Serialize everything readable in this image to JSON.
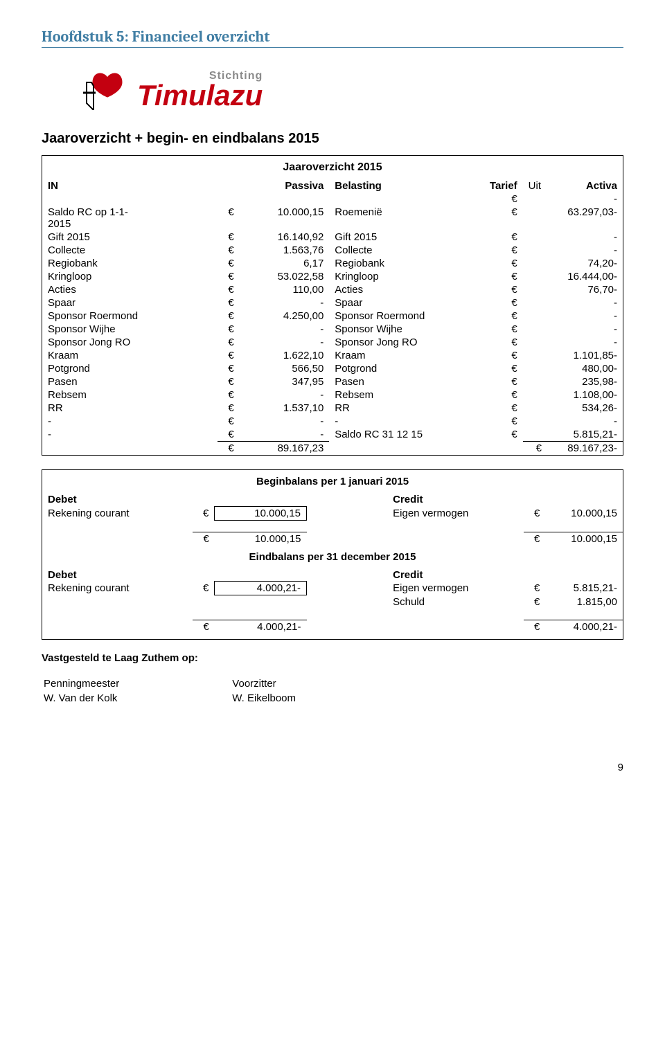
{
  "chapter_title": "Hoofdstuk 5: Financieel overzicht",
  "logo": {
    "top": "Stichting",
    "main": "Timulazu"
  },
  "main_title": "Jaaroverzicht + begin- en eindbalans 2015",
  "jaar_title": "Jaaroverzicht 2015",
  "header": {
    "in": "IN",
    "passiva": "Passiva",
    "belasting": "Belasting",
    "tarief": "Tarief",
    "uit": "Uit",
    "activa": "Activa"
  },
  "dash_row": "-",
  "rows": [
    {
      "l": "Saldo RC op 1-1-2015",
      "v": "10.000,15",
      "r": "Roemenië",
      "rv": "63.297,03-"
    },
    {
      "l": "Gift 2015",
      "v": "16.140,92",
      "r": "Gift 2015",
      "rv": "-"
    },
    {
      "l": "Collecte",
      "v": "1.563,76",
      "r": "Collecte",
      "rv": "-"
    },
    {
      "l": "Regiobank",
      "v": "6,17",
      "r": "Regiobank",
      "rv": "74,20-"
    },
    {
      "l": "Kringloop",
      "v": "53.022,58",
      "r": "Kringloop",
      "rv": "16.444,00-"
    },
    {
      "l": "Acties",
      "v": "110,00",
      "r": "Acties",
      "rv": "76,70-"
    },
    {
      "l": "Spaar",
      "v": "-",
      "r": "Spaar",
      "rv": "-"
    },
    {
      "l": "Sponsor Roermond",
      "v": "4.250,00",
      "r": "Sponsor Roermond",
      "rv": "-"
    },
    {
      "l": "Sponsor Wijhe",
      "v": "-",
      "r": "Sponsor Wijhe",
      "rv": "-"
    },
    {
      "l": "Sponsor Jong RO",
      "v": "-",
      "r": "Sponsor Jong RO",
      "rv": "-"
    },
    {
      "l": "Kraam",
      "v": "1.622,10",
      "r": "Kraam",
      "rv": "1.101,85-"
    },
    {
      "l": "Potgrond",
      "v": "566,50",
      "r": "Potgrond",
      "rv": "480,00-"
    },
    {
      "l": "Pasen",
      "v": "347,95",
      "r": "Pasen",
      "rv": "235,98-"
    },
    {
      "l": "Rebsem",
      "v": "-",
      "r": "Rebsem",
      "rv": "1.108,00-"
    },
    {
      "l": "RR",
      "v": "1.537,10",
      "r": "RR",
      "rv": "534,26-"
    },
    {
      "l": "-",
      "v": "-",
      "r": "-",
      "rv": "-"
    },
    {
      "l": "-",
      "v": "-",
      "r": "Saldo RC 31 12 15",
      "rv": "5.815,21-"
    }
  ],
  "totals": {
    "left": "89.167,23",
    "right": "89.167,23-"
  },
  "begin": {
    "title": "Beginbalans per 1 januari 2015",
    "debet": "Debet",
    "credit": "Credit",
    "rek": "Rekening courant",
    "rekv": "10.000,15",
    "ev": "Eigen vermogen",
    "evv": "10.000,15",
    "tot_l": "10.000,15",
    "tot_r": "10.000,15"
  },
  "eind": {
    "title": "Eindbalans per 31 december 2015",
    "debet": "Debet",
    "credit": "Credit",
    "rek": "Rekening courant",
    "rekv": "4.000,21-",
    "ev": "Eigen vermogen",
    "evv": "5.815,21-",
    "schuld": "Schuld",
    "schuldv": "1.815,00",
    "tot_l": "4.000,21-",
    "tot_r": "4.000,21-"
  },
  "vastgesteld": "Vastgesteld te Laag Zuthem op:",
  "sign": {
    "p": "Penningmeester",
    "pn": "W. Van der Kolk",
    "v": "Voorzitter",
    "vn": "W. Eikelboom"
  },
  "page": "9"
}
